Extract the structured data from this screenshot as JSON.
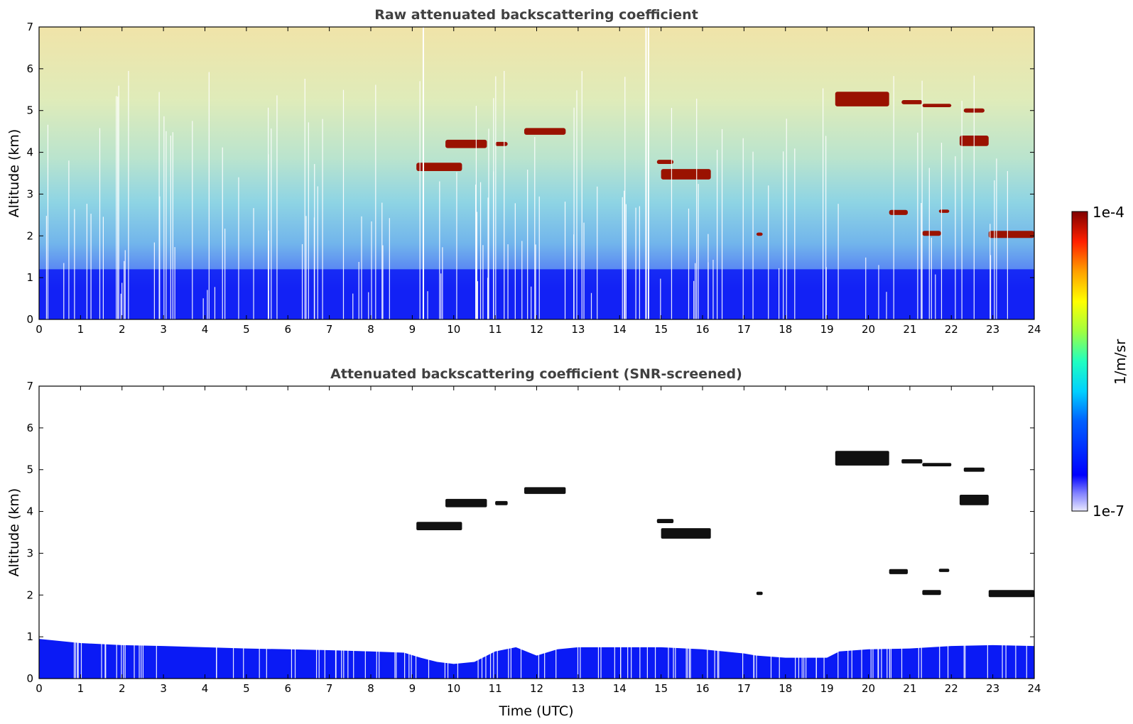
{
  "chart_data": [
    {
      "type": "heatmap",
      "title": "Raw attenuated backscattering coefficient",
      "xlabel": "",
      "ylabel": "Altitude (km)",
      "xlim": [
        0,
        24
      ],
      "ylim": [
        0,
        7
      ],
      "x_ticks": [
        "0",
        "1",
        "2",
        "3",
        "4",
        "5",
        "6",
        "7",
        "8",
        "9",
        "10",
        "11",
        "12",
        "13",
        "14",
        "15",
        "16",
        "17",
        "18",
        "19",
        "20",
        "21",
        "22",
        "23",
        "24"
      ],
      "y_ticks": [
        "0",
        "1",
        "2",
        "3",
        "4",
        "5",
        "6",
        "7"
      ],
      "boundary_layer_top_km": 1.2,
      "cloud_layers": [
        {
          "t_start": 9.1,
          "t_end": 10.2,
          "z_start": 3.55,
          "z_end": 3.75
        },
        {
          "t_start": 9.8,
          "t_end": 10.8,
          "z_start": 4.1,
          "z_end": 4.3
        },
        {
          "t_start": 11.0,
          "t_end": 11.3,
          "z_start": 4.15,
          "z_end": 4.25
        },
        {
          "t_start": 11.7,
          "t_end": 12.7,
          "z_start": 4.42,
          "z_end": 4.58
        },
        {
          "t_start": 14.9,
          "t_end": 15.3,
          "z_start": 3.72,
          "z_end": 3.82
        },
        {
          "t_start": 15.0,
          "t_end": 16.2,
          "z_start": 3.35,
          "z_end": 3.6
        },
        {
          "t_start": 17.3,
          "t_end": 17.45,
          "z_start": 2.0,
          "z_end": 2.08
        },
        {
          "t_start": 19.2,
          "t_end": 20.5,
          "z_start": 5.1,
          "z_end": 5.45
        },
        {
          "t_start": 20.8,
          "t_end": 21.3,
          "z_start": 5.15,
          "z_end": 5.25
        },
        {
          "t_start": 21.3,
          "t_end": 22.0,
          "z_start": 5.08,
          "z_end": 5.16
        },
        {
          "t_start": 22.3,
          "t_end": 22.8,
          "z_start": 4.95,
          "z_end": 5.05
        },
        {
          "t_start": 22.2,
          "t_end": 22.9,
          "z_start": 4.15,
          "z_end": 4.4
        },
        {
          "t_start": 20.5,
          "t_end": 20.95,
          "z_start": 2.5,
          "z_end": 2.62
        },
        {
          "t_start": 21.7,
          "t_end": 21.95,
          "z_start": 2.55,
          "z_end": 2.63
        },
        {
          "t_start": 21.3,
          "t_end": 21.75,
          "z_start": 2.0,
          "z_end": 2.12
        },
        {
          "t_start": 22.9,
          "t_end": 24.0,
          "z_start": 1.95,
          "z_end": 2.12
        }
      ]
    },
    {
      "type": "heatmap",
      "title": "Attenuated backscattering coefficient (SNR-screened)",
      "xlabel": "Time (UTC)",
      "ylabel": "Altitude (km)",
      "xlim": [
        0,
        24
      ],
      "ylim": [
        0,
        7
      ],
      "x_ticks": [
        "0",
        "1",
        "2",
        "3",
        "4",
        "5",
        "6",
        "7",
        "8",
        "9",
        "10",
        "11",
        "12",
        "13",
        "14",
        "15",
        "16",
        "17",
        "18",
        "19",
        "20",
        "21",
        "22",
        "23",
        "24"
      ],
      "y_ticks": [
        "0",
        "1",
        "2",
        "3",
        "4",
        "5",
        "6",
        "7"
      ],
      "boundary_layer_top_km": [
        [
          0,
          0.95
        ],
        [
          1,
          0.85
        ],
        [
          2,
          0.8
        ],
        [
          3,
          0.78
        ],
        [
          4,
          0.75
        ],
        [
          5,
          0.72
        ],
        [
          6,
          0.7
        ],
        [
          7,
          0.68
        ],
        [
          8,
          0.65
        ],
        [
          8.8,
          0.62
        ],
        [
          9.2,
          0.5
        ],
        [
          9.6,
          0.4
        ],
        [
          10.0,
          0.35
        ],
        [
          10.5,
          0.4
        ],
        [
          11.0,
          0.65
        ],
        [
          11.5,
          0.75
        ],
        [
          12.0,
          0.55
        ],
        [
          12.5,
          0.7
        ],
        [
          13.0,
          0.75
        ],
        [
          14.0,
          0.75
        ],
        [
          15.0,
          0.75
        ],
        [
          16.0,
          0.7
        ],
        [
          17.0,
          0.6
        ],
        [
          17.3,
          0.55
        ],
        [
          18.0,
          0.5
        ],
        [
          19.0,
          0.5
        ],
        [
          19.3,
          0.65
        ],
        [
          20.0,
          0.7
        ],
        [
          21.0,
          0.72
        ],
        [
          22.0,
          0.78
        ],
        [
          23.0,
          0.8
        ],
        [
          24.0,
          0.78
        ]
      ]
    }
  ],
  "colorbar": {
    "label": "1/m/sr",
    "max_label": "1e-4",
    "min_label": "1e-7",
    "scale": "log",
    "colormap": "jet"
  },
  "colors": {
    "cloud": "#9a1200",
    "boundary_layer": "#0a1af5",
    "title": "#404040"
  }
}
